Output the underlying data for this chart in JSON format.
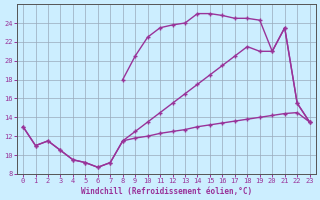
{
  "xlabel": "Windchill (Refroidissement éolien,°C)",
  "background_color": "#cceeff",
  "line_color": "#993399",
  "ylim": [
    8,
    26
  ],
  "xlim": [
    -0.5,
    23.5
  ],
  "yticks": [
    8,
    10,
    12,
    14,
    16,
    18,
    20,
    22,
    24
  ],
  "xticks": [
    0,
    1,
    2,
    3,
    4,
    5,
    6,
    7,
    8,
    9,
    10,
    11,
    12,
    13,
    14,
    15,
    16,
    17,
    18,
    19,
    20,
    21,
    22,
    23
  ],
  "grid_color": "#99aabb",
  "line_width": 1.0,
  "marker_size": 3,
  "line_bottom_x": [
    0,
    1,
    2,
    3,
    4,
    5,
    6,
    7,
    8,
    9,
    10,
    11,
    12,
    13,
    14,
    15,
    16,
    17,
    18,
    19,
    20,
    21,
    22,
    23
  ],
  "line_bottom_y": [
    13.0,
    11.0,
    11.5,
    10.5,
    9.5,
    9.2,
    8.7,
    9.2,
    11.5,
    11.8,
    12.0,
    12.3,
    12.5,
    12.7,
    13.0,
    13.2,
    13.4,
    13.6,
    13.8,
    14.0,
    14.2,
    14.4,
    14.5,
    13.5
  ],
  "line_mid_x": [
    0,
    1,
    2,
    3,
    4,
    5,
    6,
    7,
    8,
    9,
    10,
    11,
    12,
    13,
    14,
    15,
    16,
    17,
    18,
    19,
    20,
    21,
    22,
    23
  ],
  "line_mid_y": [
    13.0,
    11.0,
    11.5,
    10.5,
    9.5,
    9.2,
    8.7,
    9.2,
    11.5,
    12.5,
    13.5,
    14.5,
    15.5,
    16.5,
    17.5,
    18.5,
    19.5,
    20.5,
    21.5,
    21.0,
    21.0,
    23.5,
    15.5,
    13.5
  ],
  "line_upper_x": [
    8,
    9,
    10,
    11,
    12,
    13,
    14,
    15,
    16,
    17,
    18,
    19,
    20,
    21,
    22,
    23
  ],
  "line_upper_y": [
    18.0,
    20.5,
    22.5,
    23.5,
    23.8,
    24.0,
    25.0,
    25.0,
    24.8,
    24.5,
    24.5,
    24.3,
    21.0,
    23.5,
    15.5,
    13.5
  ]
}
